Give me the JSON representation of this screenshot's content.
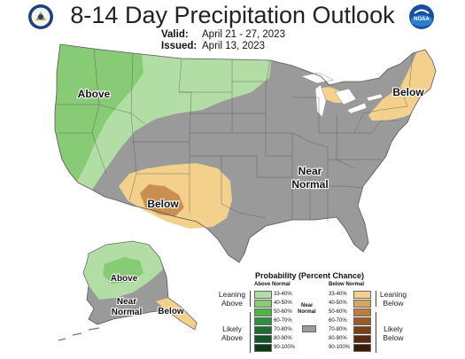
{
  "header": {
    "title": "8-14 Day Precipitation Outlook",
    "valid_label": "Valid:",
    "valid_value": "April 21 - 27, 2023",
    "issued_label": "Issued:",
    "issued_value": "April 13, 2023"
  },
  "logos": {
    "left": "doc-seal-icon",
    "right": "noaa-logo-icon",
    "right_text": "NOAA"
  },
  "map_labels": {
    "west": "Above",
    "northeast": "Below",
    "southwest": "Below",
    "center_line1": "Near",
    "center_line2": "Normal",
    "alaska_above": "Above",
    "alaska_near1": "Near",
    "alaska_near2": "Normal",
    "alaska_below": "Below"
  },
  "legend": {
    "title": "Probability (Percent Chance)",
    "above_header": "Above Normal",
    "below_header": "Below Normal",
    "near_header_1": "Near",
    "near_header_2": "Normal",
    "leaning_above_1": "Leaning",
    "leaning_above_2": "Above",
    "likely_above_1": "Likely",
    "likely_above_2": "Above",
    "leaning_below_1": "Leaning",
    "leaning_below_2": "Below",
    "likely_below_1": "Likely",
    "likely_below_2": "Below",
    "above": [
      {
        "label": "33-40%",
        "color": "#b2dea6"
      },
      {
        "label": "40-50%",
        "color": "#88cb76"
      },
      {
        "label": "50-60%",
        "color": "#4fb44a"
      },
      {
        "label": "60-70%",
        "color": "#2f8f3e"
      },
      {
        "label": "70-80%",
        "color": "#1e6e31"
      },
      {
        "label": "80-90%",
        "color": "#145424"
      },
      {
        "label": "90-100%",
        "color": "#0b3a17"
      }
    ],
    "below": [
      {
        "label": "33-40%",
        "color": "#f3d08c"
      },
      {
        "label": "40-50%",
        "color": "#d9a45e"
      },
      {
        "label": "50-60%",
        "color": "#bf7c3a"
      },
      {
        "label": "60-70%",
        "color": "#9d5a25"
      },
      {
        "label": "70-80%",
        "color": "#7c3f17"
      },
      {
        "label": "80-90%",
        "color": "#5b2a0e"
      },
      {
        "label": "90-100%",
        "color": "#3d1a07"
      }
    ],
    "near_color": "#9a9a9a"
  }
}
